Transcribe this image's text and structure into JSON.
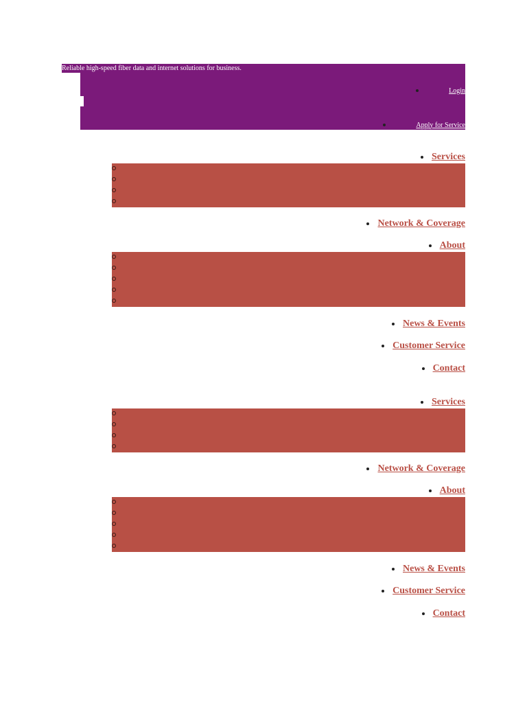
{
  "header": {
    "tagline": "Reliable high-speed fiber data and internet solutions for business.",
    "links": [
      "Login",
      "Apply for Service"
    ]
  },
  "navs": [
    {
      "items": [
        "Services",
        "Network & Coverage",
        "About",
        "News & Events",
        "Customer Service",
        "Contact"
      ]
    },
    {
      "items": [
        "Services",
        "Network & Coverage",
        "About",
        "News & Events",
        "Customer Service",
        "Contact"
      ]
    }
  ]
}
